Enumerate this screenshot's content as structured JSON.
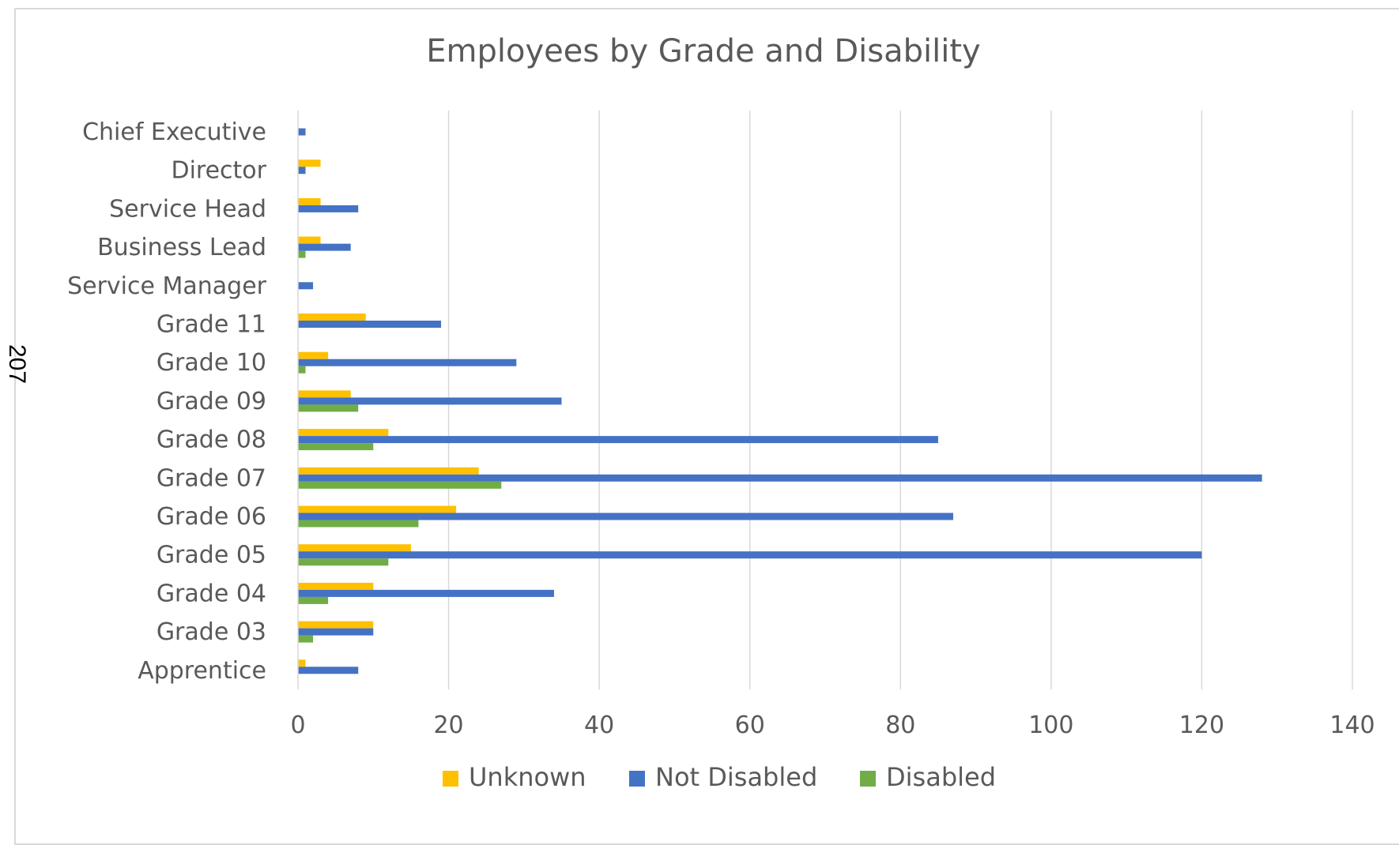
{
  "page_number": "207",
  "chart_data": {
    "type": "bar",
    "orientation": "horizontal",
    "title": "Employees by Grade and Disability",
    "xlabel": "",
    "ylabel": "",
    "categories": [
      "Chief Executive",
      "Director",
      "Service Head",
      "Business Lead",
      "Service Manager",
      "Grade 11",
      "Grade 10",
      "Grade 09",
      "Grade 08",
      "Grade 07",
      "Grade 06",
      "Grade 05",
      "Grade 04",
      "Grade 03",
      "Apprentice"
    ],
    "series": [
      {
        "name": "Unknown",
        "color": "#FFC000",
        "values": [
          0,
          3,
          3,
          3,
          0,
          9,
          4,
          7,
          12,
          24,
          21,
          15,
          10,
          10,
          1
        ]
      },
      {
        "name": "Not Disabled",
        "color": "#4472C4",
        "values": [
          1,
          1,
          8,
          7,
          2,
          19,
          29,
          35,
          85,
          128,
          87,
          120,
          34,
          10,
          8
        ]
      },
      {
        "name": "Disabled",
        "color": "#70AD47",
        "values": [
          0,
          0,
          0,
          1,
          0,
          0,
          1,
          8,
          10,
          27,
          16,
          12,
          4,
          2,
          0
        ]
      }
    ],
    "xlim": [
      0,
      140
    ],
    "xticks": [
      "0",
      "20",
      "40",
      "60",
      "80",
      "100",
      "120",
      "140"
    ],
    "xtick_values": [
      0,
      20,
      40,
      60,
      80,
      100,
      120,
      140
    ],
    "grid": true,
    "legend_position": "bottom",
    "colors": {
      "gridline": "#D9D9D9",
      "text": "#595959"
    }
  }
}
